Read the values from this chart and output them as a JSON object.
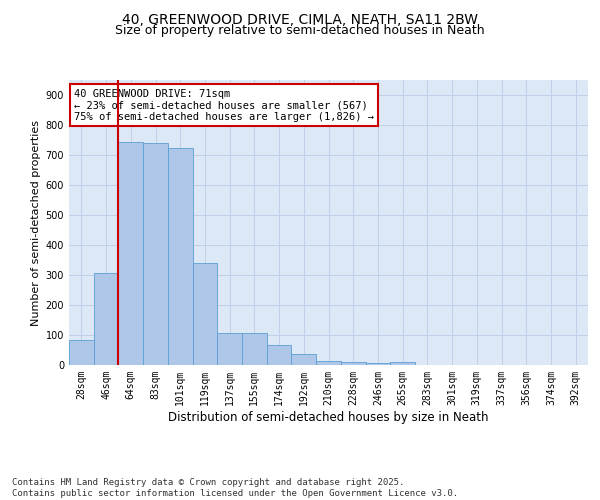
{
  "title_line1": "40, GREENWOOD DRIVE, CIMLA, NEATH, SA11 2BW",
  "title_line2": "Size of property relative to semi-detached houses in Neath",
  "xlabel": "Distribution of semi-detached houses by size in Neath",
  "ylabel": "Number of semi-detached properties",
  "categories": [
    "28sqm",
    "46sqm",
    "64sqm",
    "83sqm",
    "101sqm",
    "119sqm",
    "137sqm",
    "155sqm",
    "174sqm",
    "192sqm",
    "210sqm",
    "228sqm",
    "246sqm",
    "265sqm",
    "283sqm",
    "301sqm",
    "319sqm",
    "337sqm",
    "356sqm",
    "374sqm",
    "392sqm"
  ],
  "values": [
    83,
    308,
    742,
    740,
    725,
    340,
    108,
    108,
    68,
    38,
    15,
    10,
    8,
    10,
    0,
    0,
    0,
    0,
    0,
    0,
    0
  ],
  "bar_color": "#aec6e8",
  "bar_edge_color": "#5a9fd4",
  "grid_color": "#c0d0e8",
  "background_color": "#dce8f5",
  "vline_color": "#cc0000",
  "annotation_text": "40 GREENWOOD DRIVE: 71sqm\n← 23% of semi-detached houses are smaller (567)\n75% of semi-detached houses are larger (1,826) →",
  "annotation_box_color": "#ffffff",
  "annotation_box_edge": "#cc0000",
  "ylim": [
    0,
    950
  ],
  "yticks": [
    0,
    100,
    200,
    300,
    400,
    500,
    600,
    700,
    800,
    900
  ],
  "footer_text": "Contains HM Land Registry data © Crown copyright and database right 2025.\nContains public sector information licensed under the Open Government Licence v3.0.",
  "title_fontsize": 10,
  "subtitle_fontsize": 9,
  "axis_label_fontsize": 8,
  "tick_fontsize": 7,
  "annotation_fontsize": 7.5,
  "footer_fontsize": 6.5
}
